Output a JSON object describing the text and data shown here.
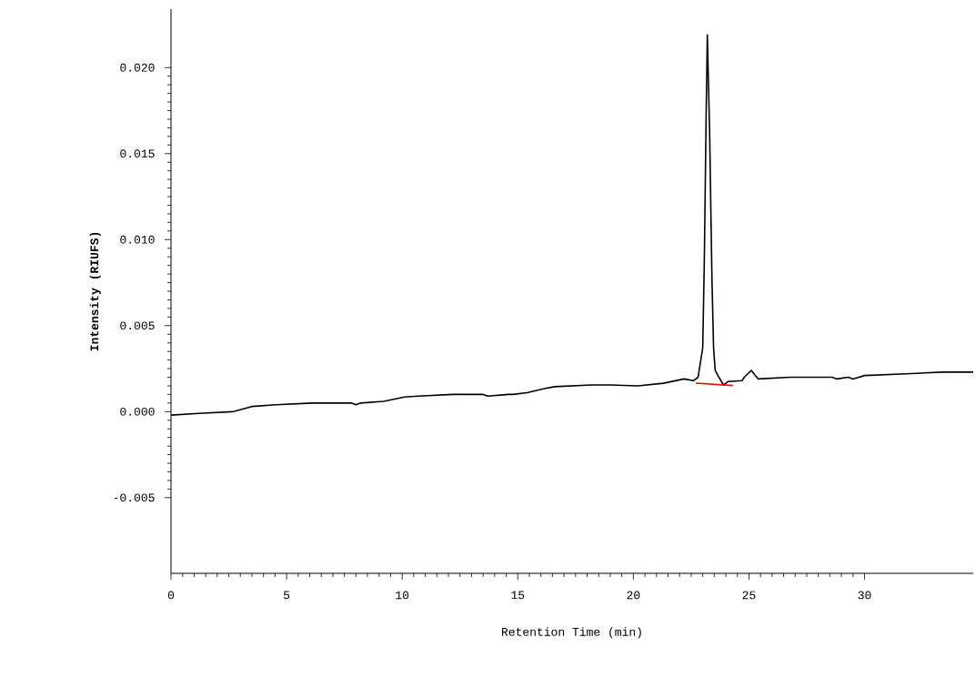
{
  "chart_data": {
    "type": "line",
    "xlabel": "Retention Time (min)",
    "ylabel": "Intensity (RIUFS)",
    "xlim": [
      0,
      34.7
    ],
    "ylim": [
      -0.0094,
      0.0234
    ],
    "xticks": [
      0,
      5,
      10,
      15,
      20,
      25,
      30
    ],
    "yticks": [
      {
        "value": -0.005,
        "label": "-0.005"
      },
      {
        "value": 0,
        "label": "0.000"
      },
      {
        "value": 0.005,
        "label": "0.005"
      },
      {
        "value": 0.01,
        "label": "0.010"
      },
      {
        "value": 0.015,
        "label": "0.015"
      },
      {
        "value": 0.02,
        "label": "0.020"
      }
    ],
    "series": [
      {
        "color": "#000000",
        "x": [
          0,
          1.2,
          2.7,
          3.5,
          4.55,
          6.1,
          7.8,
          8.0,
          8.2,
          9.2,
          10.1,
          10.7,
          12.2,
          13.5,
          13.7,
          14.6,
          14.8,
          15.4,
          16.2,
          16.6,
          18.2,
          19.0,
          20.2,
          21.3,
          22.2,
          22.6,
          22.8,
          23.0,
          23.07,
          23.15,
          23.2,
          23.3,
          23.4,
          23.47,
          23.54,
          23.7,
          23.9,
          24.1,
          24.7,
          24.8,
          25.1,
          25.4,
          26.8,
          28.6,
          28.8,
          29.3,
          29.5,
          30.0,
          31.8,
          33.4,
          34.7
        ],
        "values": [
          -0.0002,
          -0.0001,
          0.0,
          0.0003,
          0.0004,
          0.0005,
          0.0005,
          0.0004,
          0.0005,
          0.0006,
          0.00085,
          0.0009,
          0.001,
          0.001,
          0.0009,
          0.001,
          0.001,
          0.0011,
          0.00135,
          0.00145,
          0.00155,
          0.00155,
          0.0015,
          0.00165,
          0.0019,
          0.0018,
          0.002,
          0.0037,
          0.0088,
          0.0174,
          0.0219,
          0.0162,
          0.0077,
          0.0037,
          0.0024,
          0.002,
          0.00155,
          0.00175,
          0.0018,
          0.002,
          0.0024,
          0.0019,
          0.002,
          0.002,
          0.0019,
          0.002,
          0.0019,
          0.0021,
          0.0022,
          0.0023,
          0.0023
        ]
      },
      {
        "color": "#ff0000",
        "x": [
          22.7,
          24.3
        ],
        "values": [
          0.00166,
          0.00152
        ]
      }
    ]
  }
}
